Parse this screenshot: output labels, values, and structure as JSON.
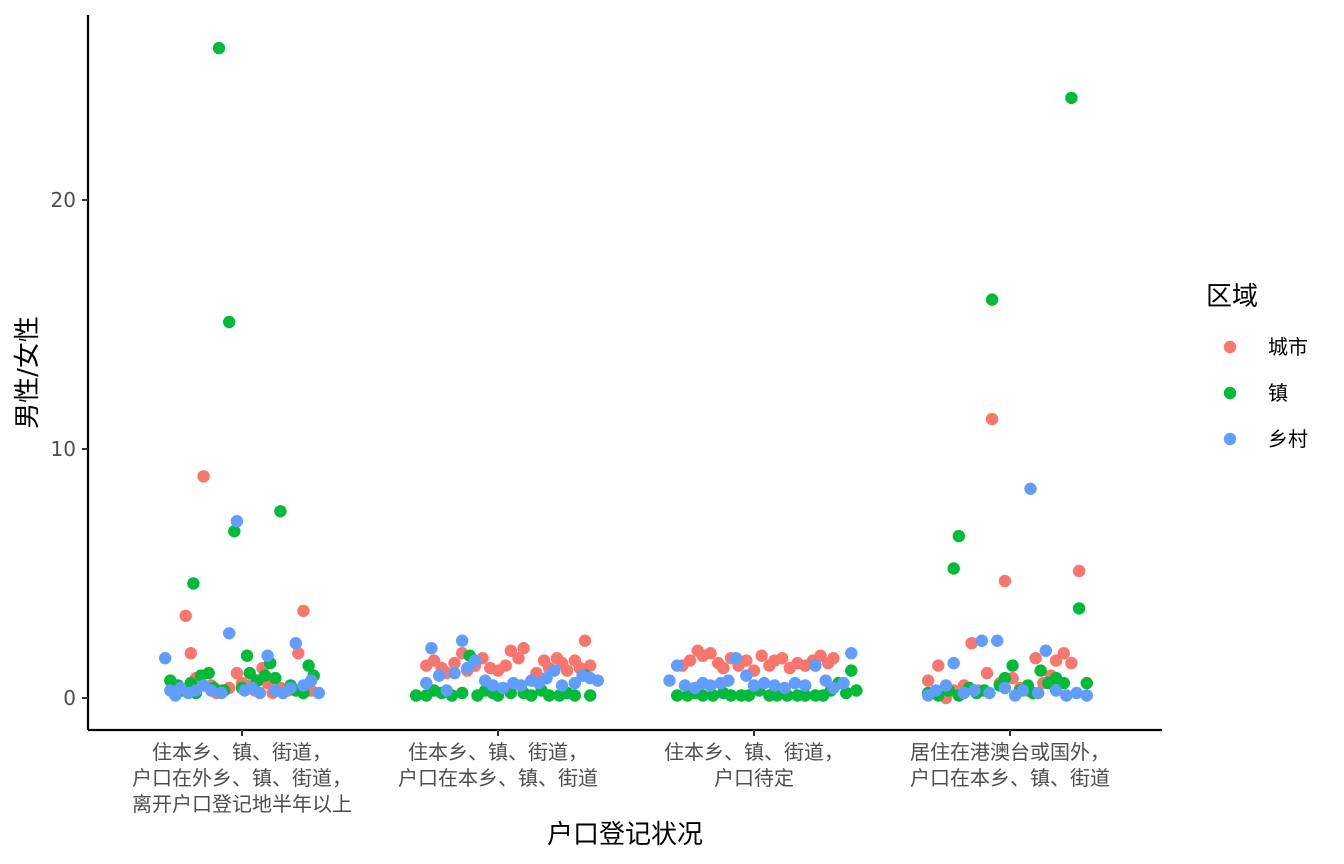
{
  "chart_data": {
    "type": "scatter",
    "xlabel": "户口登记状况",
    "ylabel": "男性/女性",
    "ylim": [
      -1.3,
      27.3
    ],
    "yticks": [
      0,
      10,
      20
    ],
    "grid": false,
    "legend": {
      "title": "区域",
      "placement": "right",
      "entries": [
        {
          "name": "城市",
          "color": "#F8766D"
        },
        {
          "name": "镇",
          "color": "#00BA38"
        },
        {
          "name": "乡村",
          "color": "#619CFF"
        }
      ]
    },
    "categories": [
      {
        "lines": [
          "住本乡、镇、街道，",
          "户口在外乡、镇、街道，",
          "离开户口登记地半年以上"
        ]
      },
      {
        "lines": [
          "住本乡、镇、街道，",
          "户口在本乡、镇、街道"
        ]
      },
      {
        "lines": [
          "住本乡、镇、街道，",
          "户口待定"
        ]
      },
      {
        "lines": [
          "居住在港澳台或国外，",
          "户口在本乡、镇、街道"
        ]
      }
    ],
    "series": [
      {
        "name": "城市",
        "color": "#F8766D",
        "points": [
          [
            -0.22,
            3.3
          ],
          [
            -0.2,
            1.8
          ],
          [
            -0.18,
            0.8
          ],
          [
            -0.15,
            8.9
          ],
          [
            -0.12,
            0.5
          ],
          [
            -0.1,
            0.2
          ],
          [
            -0.08,
            0.3
          ],
          [
            -0.05,
            0.4
          ],
          [
            -0.02,
            1.0
          ],
          [
            0.0,
            0.6
          ],
          [
            0.03,
            0.5
          ],
          [
            0.05,
            0.3
          ],
          [
            0.08,
            1.2
          ],
          [
            0.1,
            0.6
          ],
          [
            0.12,
            0.2
          ],
          [
            0.15,
            0.4
          ],
          [
            0.18,
            0.3
          ],
          [
            0.22,
            1.8
          ],
          [
            0.24,
            3.5
          ],
          [
            0.27,
            0.3
          ],
          [
            0.72,
            1.3
          ],
          [
            0.75,
            1.5
          ],
          [
            0.78,
            1.2
          ],
          [
            0.8,
            1.0
          ],
          [
            0.83,
            1.4
          ],
          [
            0.86,
            1.8
          ],
          [
            0.88,
            1.1
          ],
          [
            0.91,
            1.3
          ],
          [
            0.94,
            1.6
          ],
          [
            0.97,
            1.2
          ],
          [
            1.0,
            1.1
          ],
          [
            1.03,
            1.3
          ],
          [
            1.05,
            1.9
          ],
          [
            1.08,
            1.6
          ],
          [
            1.1,
            2.0
          ],
          [
            1.15,
            1.0
          ],
          [
            1.18,
            1.5
          ],
          [
            1.2,
            1.2
          ],
          [
            1.23,
            1.6
          ],
          [
            1.25,
            1.4
          ],
          [
            1.27,
            1.1
          ],
          [
            1.3,
            1.5
          ],
          [
            1.32,
            1.2
          ],
          [
            1.34,
            2.3
          ],
          [
            1.36,
            1.3
          ],
          [
            1.72,
            1.3
          ],
          [
            1.75,
            1.5
          ],
          [
            1.78,
            1.9
          ],
          [
            1.8,
            1.7
          ],
          [
            1.83,
            1.8
          ],
          [
            1.86,
            1.4
          ],
          [
            1.88,
            1.2
          ],
          [
            1.91,
            1.6
          ],
          [
            1.94,
            1.3
          ],
          [
            1.97,
            1.5
          ],
          [
            2.0,
            1.1
          ],
          [
            2.03,
            1.7
          ],
          [
            2.06,
            1.3
          ],
          [
            2.08,
            1.5
          ],
          [
            2.11,
            1.6
          ],
          [
            2.14,
            1.2
          ],
          [
            2.17,
            1.4
          ],
          [
            2.2,
            1.3
          ],
          [
            2.23,
            1.5
          ],
          [
            2.26,
            1.7
          ],
          [
            2.29,
            1.4
          ],
          [
            2.31,
            1.6
          ],
          [
            2.68,
            0.7
          ],
          [
            2.72,
            1.3
          ],
          [
            2.75,
            0.0
          ],
          [
            2.78,
            0.3
          ],
          [
            2.82,
            0.5
          ],
          [
            2.85,
            2.2
          ],
          [
            2.88,
            0.3
          ],
          [
            2.91,
            1.0
          ],
          [
            2.93,
            11.2
          ],
          [
            2.96,
            0.6
          ],
          [
            2.98,
            4.7
          ],
          [
            3.01,
            0.8
          ],
          [
            3.04,
            0.4
          ],
          [
            3.07,
            0.3
          ],
          [
            3.1,
            1.6
          ],
          [
            3.13,
            0.6
          ],
          [
            3.16,
            0.9
          ],
          [
            3.18,
            1.5
          ],
          [
            3.21,
            1.8
          ],
          [
            3.24,
            1.4
          ],
          [
            3.27,
            5.1
          ]
        ]
      },
      {
        "name": "镇",
        "color": "#00BA38",
        "points": [
          [
            -0.28,
            0.7
          ],
          [
            -0.25,
            0.5
          ],
          [
            -0.23,
            0.3
          ],
          [
            -0.2,
            0.6
          ],
          [
            -0.18,
            0.2
          ],
          [
            -0.16,
            0.9
          ],
          [
            -0.13,
            1.0
          ],
          [
            -0.11,
            0.4
          ],
          [
            -0.09,
            26.1
          ],
          [
            -0.07,
            0.3
          ],
          [
            -0.05,
            15.1
          ],
          [
            -0.03,
            6.7
          ],
          [
            0.0,
            0.4
          ],
          [
            0.02,
            1.7
          ],
          [
            0.03,
            1.0
          ],
          [
            0.06,
            0.7
          ],
          [
            0.09,
            0.9
          ],
          [
            0.11,
            1.4
          ],
          [
            0.13,
            0.8
          ],
          [
            0.15,
            7.5
          ],
          [
            0.19,
            0.5
          ],
          [
            0.21,
            0.3
          ],
          [
            0.24,
            0.2
          ],
          [
            0.26,
            1.3
          ],
          [
            0.28,
            0.9
          ],
          [
            -0.19,
            4.6
          ],
          [
            0.68,
            0.1
          ],
          [
            0.72,
            0.1
          ],
          [
            0.75,
            0.3
          ],
          [
            0.78,
            0.2
          ],
          [
            0.82,
            0.1
          ],
          [
            0.86,
            0.2
          ],
          [
            0.89,
            1.7
          ],
          [
            0.92,
            0.1
          ],
          [
            0.95,
            0.3
          ],
          [
            0.98,
            0.2
          ],
          [
            1.0,
            0.1
          ],
          [
            1.05,
            0.2
          ],
          [
            1.1,
            0.2
          ],
          [
            1.13,
            0.1
          ],
          [
            1.17,
            0.3
          ],
          [
            1.2,
            0.1
          ],
          [
            1.24,
            0.1
          ],
          [
            1.27,
            0.2
          ],
          [
            1.3,
            0.1
          ],
          [
            1.34,
            0.9
          ],
          [
            1.36,
            0.1
          ],
          [
            1.7,
            0.1
          ],
          [
            1.74,
            0.1
          ],
          [
            1.77,
            0.2
          ],
          [
            1.8,
            0.1
          ],
          [
            1.84,
            0.1
          ],
          [
            1.88,
            0.2
          ],
          [
            1.91,
            0.1
          ],
          [
            1.95,
            0.1
          ],
          [
            1.98,
            0.1
          ],
          [
            2.02,
            0.3
          ],
          [
            2.06,
            0.1
          ],
          [
            2.09,
            0.1
          ],
          [
            2.13,
            0.1
          ],
          [
            2.17,
            0.1
          ],
          [
            2.2,
            0.1
          ],
          [
            2.24,
            0.1
          ],
          [
            2.27,
            0.1
          ],
          [
            2.3,
            0.3
          ],
          [
            2.33,
            0.6
          ],
          [
            2.36,
            0.2
          ],
          [
            2.38,
            1.1
          ],
          [
            2.4,
            0.3
          ],
          [
            2.68,
            0.2
          ],
          [
            2.72,
            0.1
          ],
          [
            2.76,
            0.3
          ],
          [
            2.8,
            0.1
          ],
          [
            2.84,
            0.4
          ],
          [
            2.87,
            0.2
          ],
          [
            2.9,
            0.3
          ],
          [
            2.93,
            16.0
          ],
          [
            2.96,
            0.5
          ],
          [
            2.98,
            0.8
          ],
          [
            3.01,
            1.3
          ],
          [
            3.04,
            0.3
          ],
          [
            3.07,
            0.5
          ],
          [
            3.09,
            0.2
          ],
          [
            3.12,
            1.1
          ],
          [
            3.15,
            0.6
          ],
          [
            3.18,
            0.8
          ],
          [
            3.21,
            0.6
          ],
          [
            3.24,
            24.1
          ],
          [
            3.27,
            3.6
          ],
          [
            3.3,
            0.6
          ],
          [
            2.8,
            6.5
          ],
          [
            2.78,
            5.2
          ]
        ]
      },
      {
        "name": "乡村",
        "color": "#619CFF",
        "points": [
          [
            -0.3,
            1.6
          ],
          [
            -0.28,
            0.3
          ],
          [
            -0.26,
            0.1
          ],
          [
            -0.24,
            0.4
          ],
          [
            -0.21,
            0.2
          ],
          [
            -0.18,
            0.3
          ],
          [
            -0.15,
            0.5
          ],
          [
            -0.12,
            0.3
          ],
          [
            -0.08,
            0.2
          ],
          [
            -0.05,
            2.6
          ],
          [
            -0.02,
            7.1
          ],
          [
            0.01,
            0.3
          ],
          [
            0.04,
            0.4
          ],
          [
            0.07,
            0.2
          ],
          [
            0.1,
            1.7
          ],
          [
            0.13,
            0.3
          ],
          [
            0.16,
            0.2
          ],
          [
            0.19,
            0.4
          ],
          [
            0.21,
            2.2
          ],
          [
            0.24,
            0.5
          ],
          [
            0.27,
            0.7
          ],
          [
            0.3,
            0.2
          ],
          [
            0.72,
            0.6
          ],
          [
            0.74,
            2.0
          ],
          [
            0.77,
            0.9
          ],
          [
            0.8,
            0.3
          ],
          [
            0.83,
            1.0
          ],
          [
            0.86,
            2.3
          ],
          [
            0.88,
            1.2
          ],
          [
            0.91,
            1.5
          ],
          [
            0.95,
            0.7
          ],
          [
            0.98,
            0.5
          ],
          [
            1.02,
            0.4
          ],
          [
            1.06,
            0.6
          ],
          [
            1.09,
            0.5
          ],
          [
            1.13,
            0.7
          ],
          [
            1.16,
            0.6
          ],
          [
            1.19,
            0.8
          ],
          [
            1.22,
            1.1
          ],
          [
            1.25,
            0.5
          ],
          [
            1.3,
            0.6
          ],
          [
            1.33,
            0.9
          ],
          [
            1.36,
            0.8
          ],
          [
            1.39,
            0.7
          ],
          [
            1.67,
            0.7
          ],
          [
            1.7,
            1.3
          ],
          [
            1.73,
            0.5
          ],
          [
            1.77,
            0.4
          ],
          [
            1.8,
            0.6
          ],
          [
            1.83,
            0.5
          ],
          [
            1.87,
            0.6
          ],
          [
            1.9,
            0.7
          ],
          [
            1.93,
            1.6
          ],
          [
            1.97,
            0.9
          ],
          [
            2.0,
            0.5
          ],
          [
            2.04,
            0.6
          ],
          [
            2.08,
            0.5
          ],
          [
            2.12,
            0.4
          ],
          [
            2.16,
            0.6
          ],
          [
            2.2,
            0.5
          ],
          [
            2.24,
            1.3
          ],
          [
            2.28,
            0.7
          ],
          [
            2.31,
            0.4
          ],
          [
            2.35,
            0.6
          ],
          [
            2.38,
            1.8
          ],
          [
            2.68,
            0.1
          ],
          [
            2.71,
            0.3
          ],
          [
            2.75,
            0.5
          ],
          [
            2.78,
            1.4
          ],
          [
            2.82,
            0.2
          ],
          [
            2.86,
            0.3
          ],
          [
            2.89,
            2.3
          ],
          [
            2.92,
            0.2
          ],
          [
            2.95,
            2.3
          ],
          [
            2.98,
            0.4
          ],
          [
            3.02,
            0.1
          ],
          [
            3.05,
            0.3
          ],
          [
            3.08,
            8.4
          ],
          [
            3.11,
            0.2
          ],
          [
            3.14,
            1.9
          ],
          [
            3.18,
            0.3
          ],
          [
            3.22,
            0.1
          ],
          [
            3.26,
            0.2
          ],
          [
            3.3,
            0.1
          ]
        ]
      }
    ]
  }
}
